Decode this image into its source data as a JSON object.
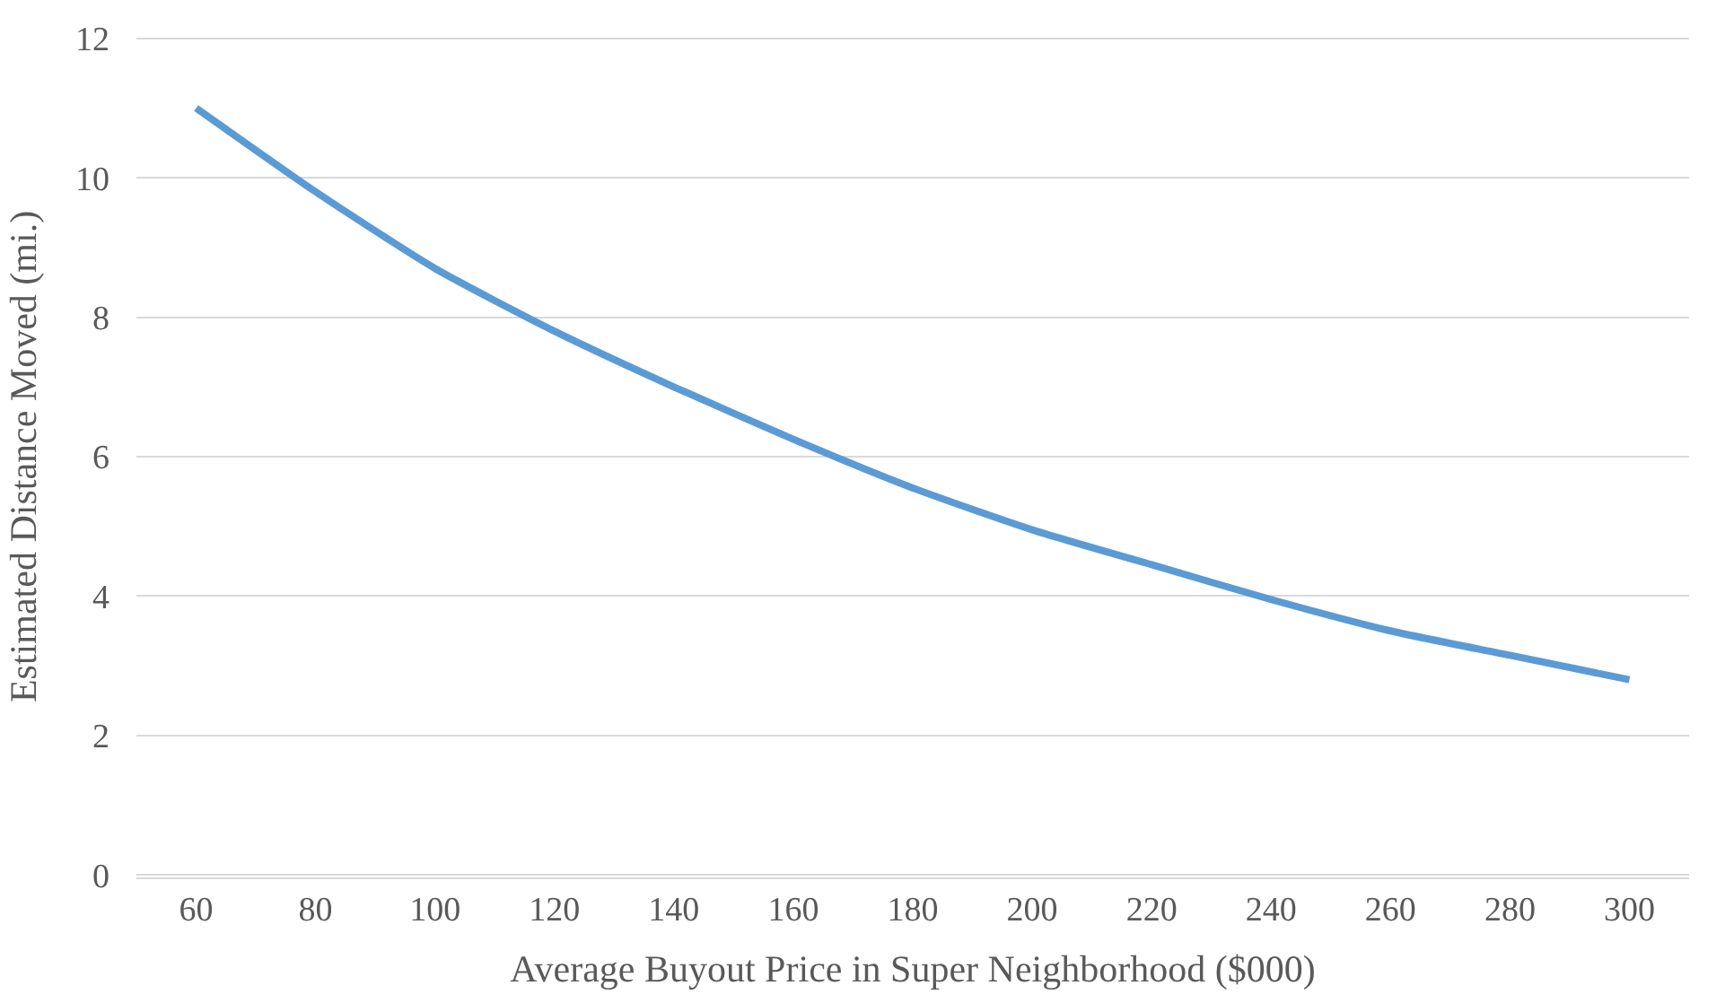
{
  "chart_data": {
    "type": "line",
    "xlabel": "Average Buyout Price in Super Neighborhood ($000)",
    "ylabel": "Estimated Distance Moved (mi.)",
    "categories": [
      "60",
      "80",
      "100",
      "120",
      "140",
      "160",
      "180",
      "200",
      "220",
      "240",
      "260",
      "280",
      "300"
    ],
    "series": [
      {
        "color": "#5b9bd5",
        "values": [
          11.0,
          9.8,
          8.7,
          7.8,
          7.0,
          6.25,
          5.55,
          4.95,
          4.45,
          3.95,
          3.5,
          3.15,
          2.8
        ]
      }
    ],
    "ylim": [
      0,
      12
    ],
    "yticks": [
      0,
      2,
      4,
      6,
      8,
      10,
      12
    ],
    "grid": "y",
    "marker": "none",
    "line_style": "solid"
  }
}
